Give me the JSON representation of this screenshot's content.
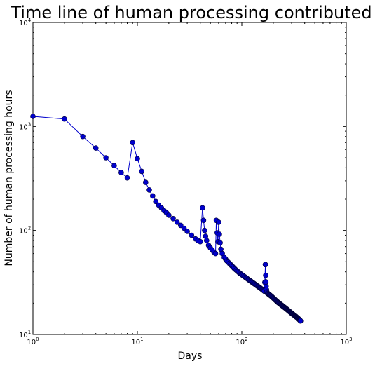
{
  "chart_data": {
    "type": "line",
    "title": "Time line of human processing contributed",
    "xlabel": "Days",
    "ylabel": "Number of human processing hours",
    "xscale": "log",
    "yscale": "log",
    "xlim": [
      1,
      1000
    ],
    "ylim": [
      10,
      10000
    ],
    "x_ticks": [
      {
        "value": 1,
        "label": "10",
        "exp": "0"
      },
      {
        "value": 10,
        "label": "10",
        "exp": "1"
      },
      {
        "value": 100,
        "label": "10",
        "exp": "2"
      },
      {
        "value": 1000,
        "label": "10",
        "exp": "3"
      }
    ],
    "y_ticks": [
      {
        "value": 10,
        "label": "10",
        "exp": "1"
      },
      {
        "value": 100,
        "label": "10",
        "exp": "2"
      },
      {
        "value": 1000,
        "label": "10",
        "exp": "3"
      },
      {
        "value": 10000,
        "label": "10",
        "exp": "4"
      }
    ],
    "grid": false,
    "line_color": "#0000cc",
    "marker": "circle",
    "series": [
      {
        "x": [
          1,
          2,
          3,
          4,
          5,
          6,
          7,
          8,
          9,
          10,
          11,
          12,
          13,
          14,
          15,
          16,
          17,
          18,
          19,
          20,
          22,
          24,
          26,
          28,
          30,
          33,
          36,
          38,
          40,
          42,
          43,
          44,
          45,
          46,
          48,
          50,
          52,
          54,
          56,
          57,
          58,
          59,
          60,
          61,
          62,
          63,
          65,
          68,
          72,
          78,
          85,
          95,
          110,
          130,
          150,
          165,
          168,
          169,
          170,
          171,
          172,
          175,
          190,
          220,
          260,
          300,
          340,
          365
        ],
        "y": [
          1250,
          1180,
          800,
          620,
          500,
          420,
          360,
          320,
          700,
          490,
          370,
          290,
          245,
          215,
          190,
          175,
          165,
          155,
          148,
          140,
          130,
          120,
          112,
          105,
          98,
          90,
          83,
          80,
          78,
          165,
          125,
          100,
          88,
          80,
          72,
          68,
          65,
          62,
          60,
          125,
          95,
          78,
          120,
          92,
          76,
          66,
          60,
          55,
          51,
          47,
          43,
          39,
          35,
          31,
          28,
          26,
          47,
          37,
          32,
          29,
          27,
          25,
          23.5,
          20.5,
          18,
          16,
          14.5,
          13.5
        ]
      }
    ]
  }
}
